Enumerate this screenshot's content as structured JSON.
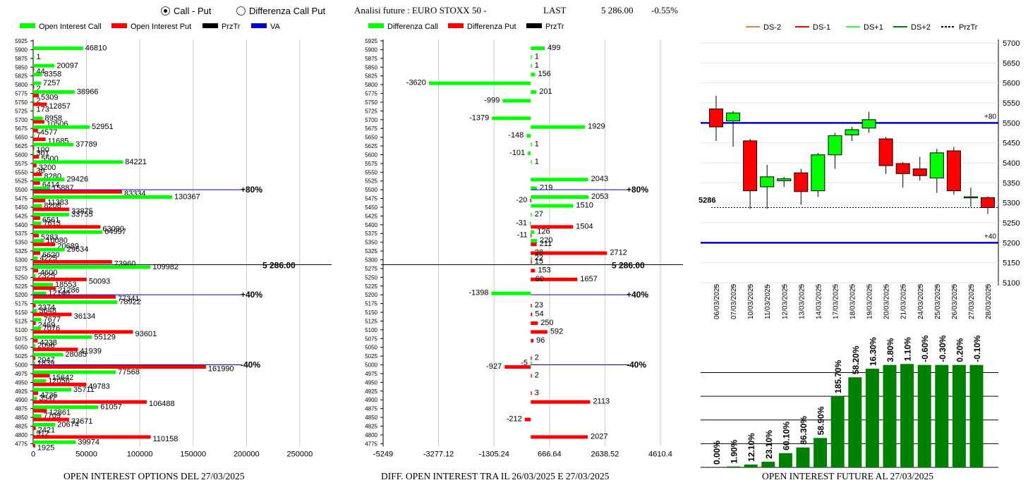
{
  "controls": {
    "radio_call_put": "Call - Put",
    "radio_diff": "Differenza Call Put",
    "title": "Analisi future : EURO STOXX 50 -",
    "last_label": "LAST",
    "last_value": "5 286.00",
    "last_change": "-0.55%"
  },
  "footers": {
    "left": "OPEN INTEREST OPTIONS DEL 27/03/2025",
    "mid": "DIFF. OPEN INTEREST TRA IL 26/03/2025 E 27/03/2025",
    "right": "OPEN INTEREST FUTURE AL 27/03/2025"
  },
  "colors": {
    "green": "#00ff00",
    "red": "#ff0000",
    "blue": "#0000cc",
    "dkgreen": "#008000"
  },
  "chart_data": [
    {
      "type": "bar",
      "title": "OPEN INTEREST OPTIONS DEL 27/03/2025",
      "legend": [
        "Open Interest Call",
        "Open Interest Put",
        "PrzTr",
        "VA"
      ],
      "strikes": [
        5925,
        5900,
        5875,
        5850,
        5825,
        5800,
        5775,
        5750,
        5725,
        5700,
        5675,
        5650,
        5625,
        5600,
        5575,
        5550,
        5525,
        5500,
        5475,
        5450,
        5425,
        5400,
        5375,
        5350,
        5325,
        5300,
        5275,
        5250,
        5225,
        5200,
        5175,
        5150,
        5125,
        5100,
        5075,
        5050,
        5025,
        5000,
        4975,
        4950,
        4925,
        4900,
        4875,
        4850,
        4825,
        4800,
        4775
      ],
      "call": [
        null,
        46810,
        1,
        20097,
        8358,
        7257,
        38966,
        2,
        173,
        8958,
        52951,
        7,
        37789,
        301,
        84221,
        36,
        29426,
        15887,
        130367,
        8208,
        33755,
        7613,
        64997,
        10080,
        29634,
        4225,
        109982,
        2325,
        18553,
        12140,
        78922,
        3648,
        7677,
        7076,
        55129,
        2096,
        28085,
        1839,
        77568,
        12056,
        35711,
        3547,
        61057,
        7709,
        20674,
        912,
        39974
      ],
      "put": [
        null,
        null,
        null,
        44,
        null,
        2,
        5309,
        12857,
        null,
        10506,
        4577,
        11685,
        100,
        5500,
        3200,
        8280,
        6414,
        83334,
        11383,
        33875,
        6561,
        63090,
        5283,
        20689,
        6620,
        73960,
        4600,
        50093,
        21286,
        77341,
        2374,
        36134,
        2469,
        93601,
        4238,
        41939,
        2047,
        161990,
        15642,
        49783,
        4735,
        106488,
        12861,
        33671,
        2421,
        110158,
        1925
      ],
      "xticks": [
        0,
        50000,
        100000,
        150000,
        200000,
        250000
      ],
      "xlim": [
        0,
        260000
      ],
      "price_label": "5 286.00",
      "va_labels": [
        {
          "strike": 5500,
          "text": "+80%"
        },
        {
          "strike": 5200,
          "text": "+40%"
        },
        {
          "strike": 5000,
          "text": "-40%"
        }
      ]
    },
    {
      "type": "bar",
      "title": "DIFF. OPEN INTEREST TRA IL 26/03/2025 E 27/03/2025",
      "legend": [
        "Differenza Call",
        "Differenza Put",
        "PrzTr"
      ],
      "call_diff": [
        [
          5900,
          499
        ],
        [
          5875,
          1
        ],
        [
          5850,
          1
        ],
        [
          5825,
          156
        ],
        [
          5800,
          -3620
        ],
        [
          5775,
          201
        ],
        [
          5750,
          -999
        ],
        [
          5700,
          -1379
        ],
        [
          5675,
          1929
        ],
        [
          5650,
          -148
        ],
        [
          5625,
          1
        ],
        [
          5600,
          -101
        ],
        [
          5575,
          1
        ],
        [
          5525,
          2043
        ],
        [
          5500,
          219
        ],
        [
          5475,
          2053
        ],
        [
          5450,
          1510
        ],
        [
          5425,
          27
        ],
        [
          5400,
          -31
        ],
        [
          5375,
          126
        ],
        [
          5350,
          220
        ],
        [
          5300,
          22
        ],
        [
          5200,
          -1398
        ],
        [
          5000,
          -5
        ]
      ],
      "put_diff": [
        [
          5475,
          -20
        ],
        [
          5400,
          1504
        ],
        [
          5375,
          -11
        ],
        [
          5350,
          211
        ],
        [
          5325,
          2712
        ],
        [
          5325,
          28
        ],
        [
          5300,
          15
        ],
        [
          5275,
          153
        ],
        [
          5250,
          1657
        ],
        [
          5250,
          60
        ],
        [
          5175,
          23
        ],
        [
          5150,
          54
        ],
        [
          5125,
          250
        ],
        [
          5100,
          592
        ],
        [
          5075,
          96
        ],
        [
          5025,
          2
        ],
        [
          5000,
          -927
        ],
        [
          4975,
          2
        ],
        [
          4925,
          3
        ],
        [
          4900,
          2113
        ],
        [
          4850,
          -212
        ],
        [
          4800,
          2027
        ]
      ],
      "xticks": [
        "-5249",
        "-3277.12",
        "-1305.24",
        "666.64",
        "2638.52",
        "4610.4"
      ],
      "xlim": [
        -5249,
        4610.4
      ],
      "price_label": "5 286.00",
      "va_labels": [
        "+80%",
        "+40%",
        "-40%"
      ]
    },
    {
      "type": "candlestick",
      "legend": [
        "DS-2",
        "DS-1",
        "DS+1",
        "DS+2",
        "PrzTr"
      ],
      "dates": [
        "06/03/2025",
        "07/03/2025",
        "10/03/2025",
        "11/03/2025",
        "12/03/2025",
        "13/03/2025",
        "14/03/2025",
        "17/03/2025",
        "18/03/2025",
        "19/03/2025",
        "20/03/2025",
        "21/03/2025",
        "24/03/2025",
        "25/03/2025",
        "26/03/2025",
        "27/03/2025",
        "28/03/2025"
      ],
      "ohlc": [
        [
          5535,
          5568,
          5455,
          5490
        ],
        [
          5505,
          5530,
          5440,
          5525
        ],
        [
          5455,
          5460,
          5285,
          5330
        ],
        [
          5340,
          5395,
          5285,
          5365
        ],
        [
          5355,
          5365,
          5340,
          5360
        ],
        [
          5375,
          5385,
          5295,
          5328
        ],
        [
          5330,
          5425,
          5315,
          5420
        ],
        [
          5420,
          5475,
          5385,
          5468
        ],
        [
          5470,
          5490,
          5455,
          5483
        ],
        [
          5487,
          5528,
          5475,
          5508
        ],
        [
          5460,
          5465,
          5372,
          5393
        ],
        [
          5398,
          5402,
          5338,
          5373
        ],
        [
          5385,
          5415,
          5355,
          5368
        ],
        [
          5362,
          5435,
          5325,
          5425
        ],
        [
          5430,
          5440,
          5320,
          5330
        ],
        [
          5315,
          5338,
          5290,
          5315
        ],
        [
          5313,
          5316,
          5272,
          5288
        ]
      ],
      "ylim": [
        5100,
        5700
      ],
      "yticks": [
        5100,
        5150,
        5200,
        5250,
        5300,
        5350,
        5400,
        5450,
        5500,
        5550,
        5600,
        5650,
        5700
      ],
      "hlines": [
        {
          "value": 5500,
          "label": "+80"
        },
        {
          "value": 5200,
          "label": "+40"
        }
      ],
      "price_label": "5286"
    },
    {
      "type": "bar",
      "labels": [
        "0.00%",
        "1.90%",
        "12.10%",
        "23.10%",
        "60.10%",
        "86.30%",
        "58.90%",
        "185.70%",
        "58.20%",
        "16.30%",
        "3.80%",
        "1.10%",
        "-0.60%",
        "-0.30%",
        "0.20%",
        "-0.10%"
      ],
      "values": [
        0,
        1,
        3,
        6,
        15,
        21,
        31,
        75,
        95,
        104,
        108,
        109,
        108,
        108,
        108,
        108
      ],
      "ylim": [
        0,
        110
      ]
    }
  ]
}
